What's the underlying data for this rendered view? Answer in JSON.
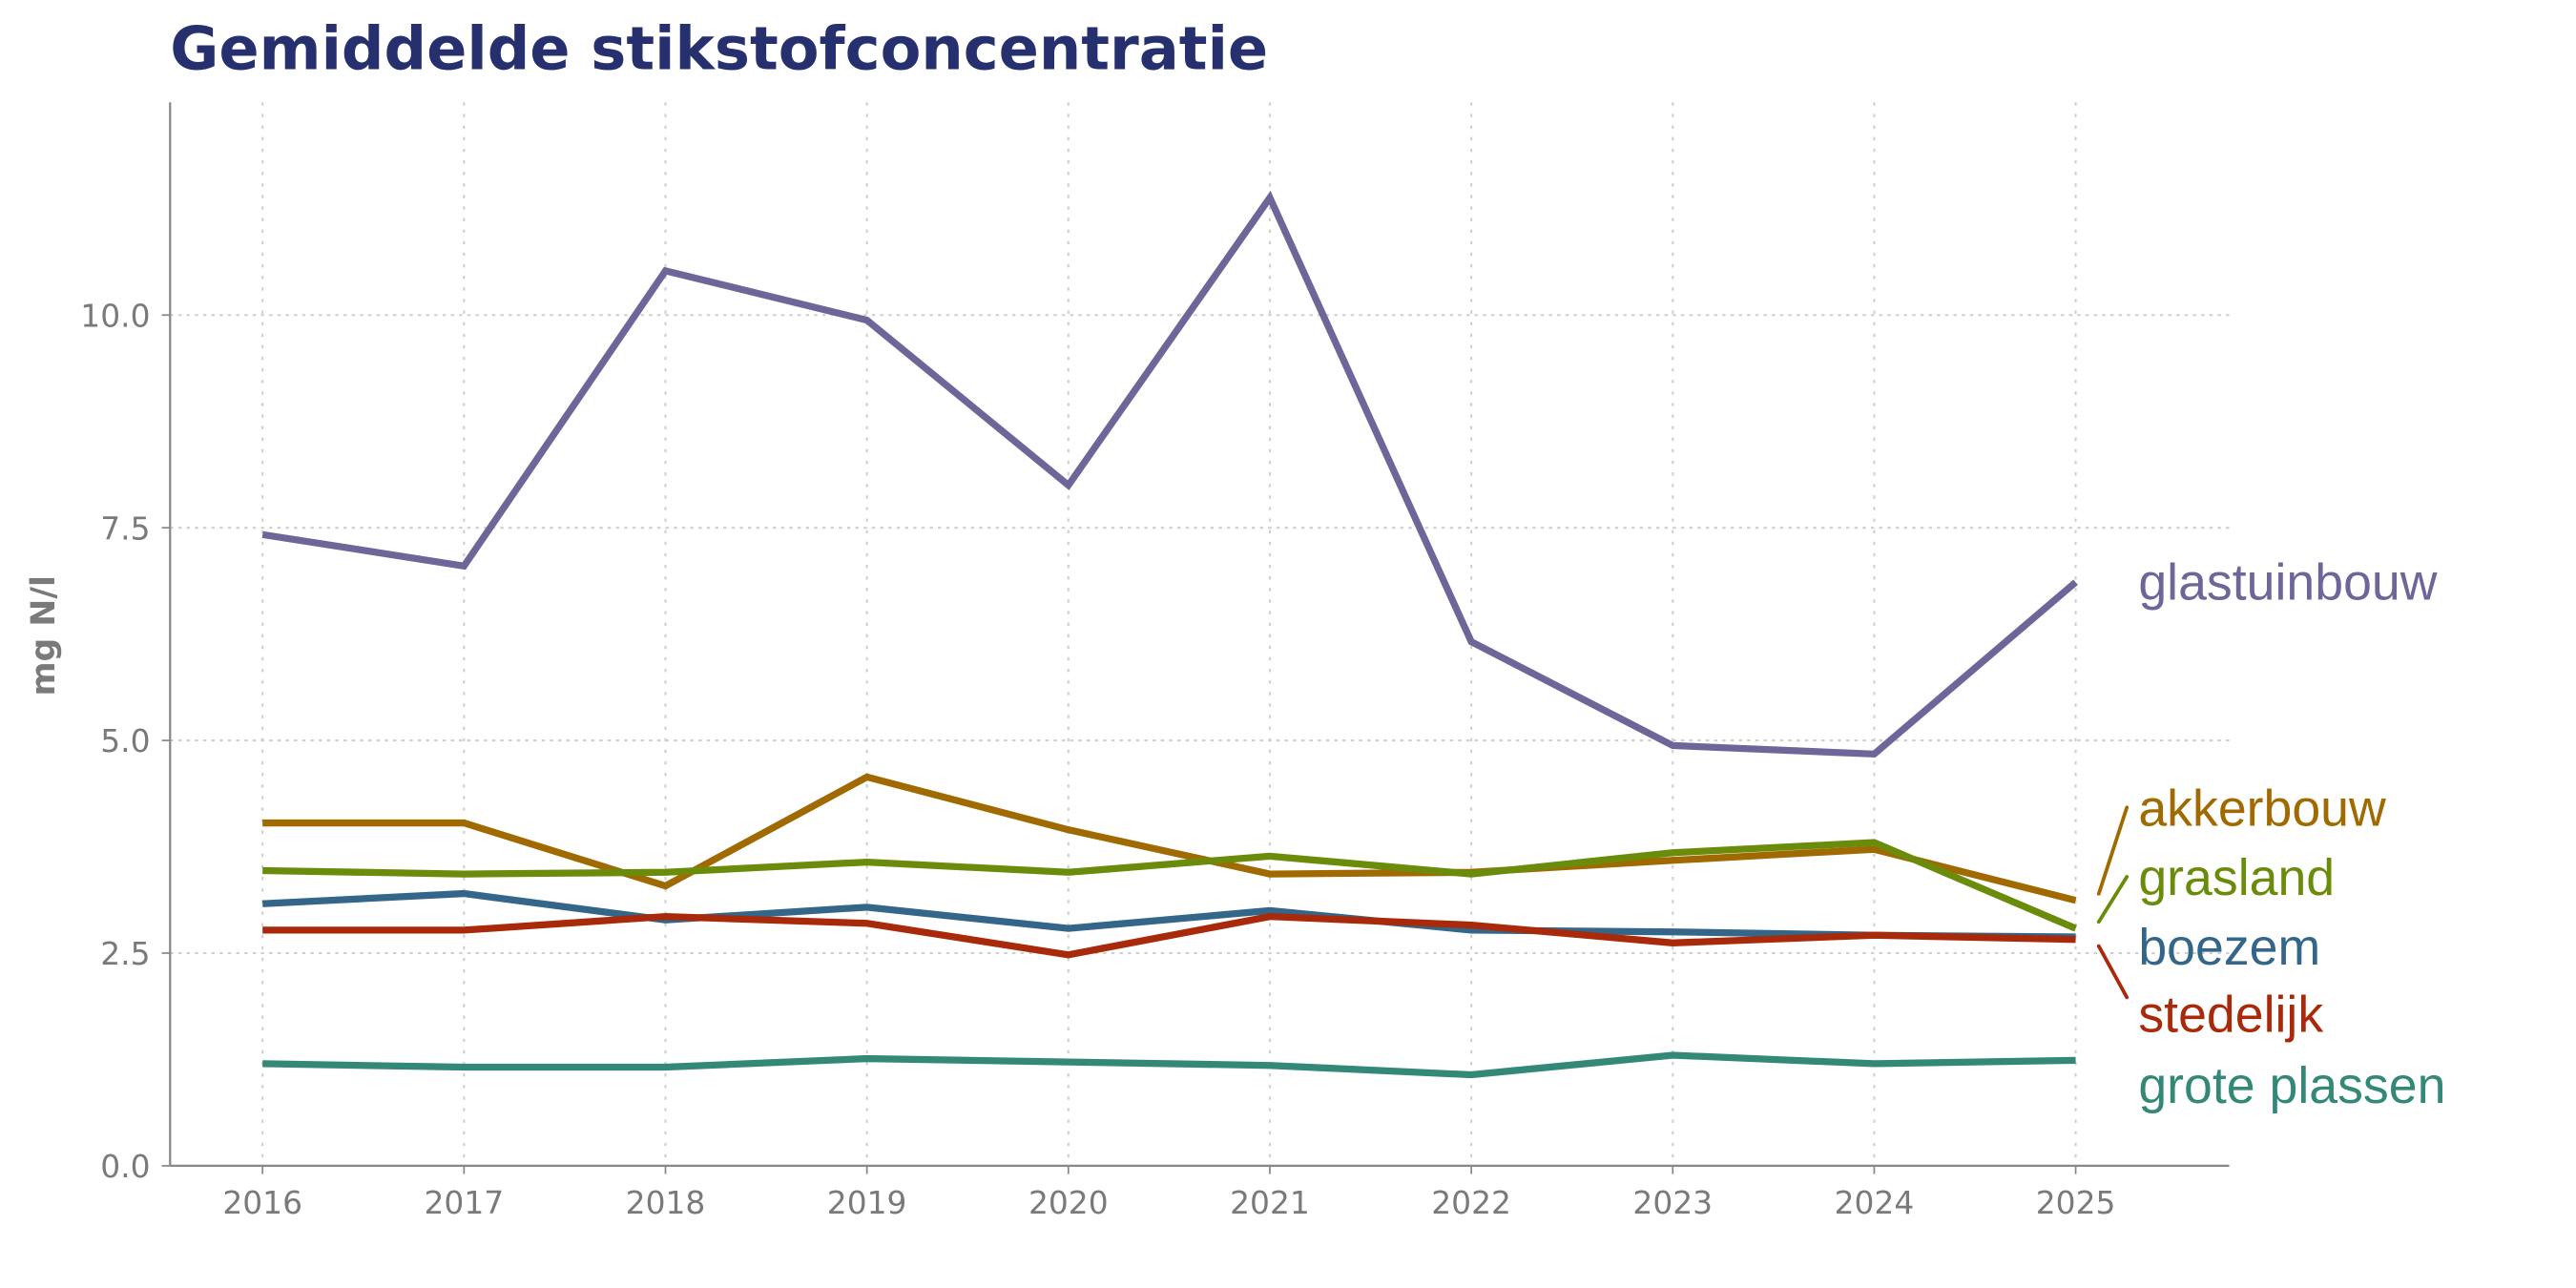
{
  "chart_data": {
    "type": "line",
    "title": "Gemiddelde stikstofconcentratie",
    "xlabel": "",
    "ylabel": "mg N/l",
    "x": [
      2016,
      2017,
      2018,
      2019,
      2020,
      2021,
      2022,
      2023,
      2024,
      2025
    ],
    "ylim": [
      0,
      12.5
    ],
    "yticks": [
      "0.0",
      "2.5",
      "5.0",
      "7.5",
      "10.0"
    ],
    "grid": true,
    "legend": "direct labels at right end of lines",
    "series": [
      {
        "name": "glastuinbouw",
        "color": "#6e6699",
        "values": [
          7.42,
          7.05,
          10.52,
          9.94,
          8.0,
          11.38,
          6.16,
          4.94,
          4.84,
          6.86
        ]
      },
      {
        "name": "akkerbouw",
        "color": "#a06a00",
        "values": [
          4.03,
          4.03,
          3.29,
          4.57,
          3.95,
          3.43,
          3.45,
          3.59,
          3.72,
          3.12
        ]
      },
      {
        "name": "grasland",
        "color": "#6a8c0a",
        "values": [
          3.47,
          3.43,
          3.45,
          3.57,
          3.45,
          3.64,
          3.43,
          3.68,
          3.8,
          2.79
        ]
      },
      {
        "name": "boezem",
        "color": "#336688",
        "values": [
          3.08,
          3.2,
          2.89,
          3.04,
          2.79,
          3.0,
          2.77,
          2.75,
          2.71,
          2.69
        ]
      },
      {
        "name": "stedelijk",
        "color": "#a82a0a",
        "values": [
          2.77,
          2.77,
          2.93,
          2.85,
          2.48,
          2.93,
          2.83,
          2.62,
          2.71,
          2.66
        ]
      },
      {
        "name": "grote plassen",
        "color": "#338877",
        "values": [
          1.2,
          1.16,
          1.16,
          1.26,
          1.22,
          1.18,
          1.07,
          1.3,
          1.2,
          1.24
        ]
      }
    ]
  }
}
